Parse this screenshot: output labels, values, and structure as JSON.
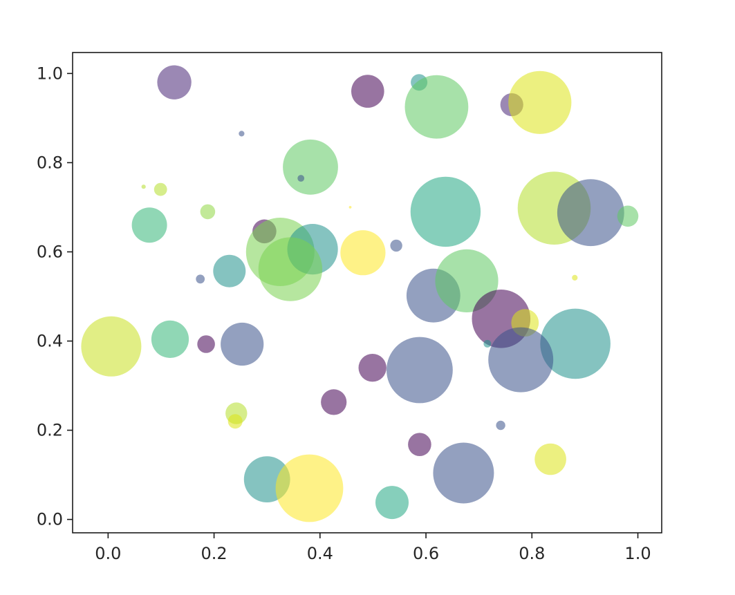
{
  "chart_data": {
    "type": "scatter",
    "title": "",
    "xlabel": "",
    "ylabel": "",
    "xlim": [
      -0.067,
      1.045
    ],
    "ylim": [
      -0.03,
      1.047
    ],
    "grid": false,
    "legend": "none",
    "alpha": 0.55,
    "colormap": "viridis",
    "xticks": [
      0.0,
      0.2,
      0.4,
      0.6,
      0.8,
      1.0
    ],
    "yticks": [
      0.0,
      0.2,
      0.4,
      0.6,
      0.8,
      1.0
    ],
    "xtick_labels": [
      "0.0",
      "0.2",
      "0.4",
      "0.6",
      "0.8",
      "1.0"
    ],
    "ytick_labels": [
      "0.0",
      "0.2",
      "0.4",
      "0.6",
      "0.8",
      "1.0"
    ],
    "points": [
      {
        "x": 0.125,
        "y": 0.98,
        "size": 326,
        "color": "#482677"
      },
      {
        "x": 0.49,
        "y": 0.96,
        "size": 303,
        "color": "#440154"
      },
      {
        "x": 0.587,
        "y": 0.98,
        "size": 77,
        "color": "#21918c"
      },
      {
        "x": 0.62,
        "y": 0.925,
        "size": 1122,
        "color": "#5ec962"
      },
      {
        "x": 0.762,
        "y": 0.93,
        "size": 146,
        "color": "#482677"
      },
      {
        "x": 0.815,
        "y": 0.935,
        "size": 1106,
        "color": "#dde318"
      },
      {
        "x": 0.252,
        "y": 0.865,
        "size": 9,
        "color": "#3b528b"
      },
      {
        "x": 0.382,
        "y": 0.79,
        "size": 849,
        "color": "#5ec962"
      },
      {
        "x": 0.364,
        "y": 0.765,
        "size": 13,
        "color": "#3b528b"
      },
      {
        "x": 0.067,
        "y": 0.746,
        "size": 5,
        "color": "#b5de2b"
      },
      {
        "x": 0.099,
        "y": 0.74,
        "size": 47,
        "color": "#b5de2b"
      },
      {
        "x": 0.188,
        "y": 0.69,
        "size": 62,
        "color": "#90d743"
      },
      {
        "x": 0.637,
        "y": 0.69,
        "size": 1367,
        "color": "#22a884"
      },
      {
        "x": 0.842,
        "y": 0.698,
        "size": 1487,
        "color": "#b5de2b"
      },
      {
        "x": 0.911,
        "y": 0.688,
        "size": 1250,
        "color": "#3b528b"
      },
      {
        "x": 0.981,
        "y": 0.68,
        "size": 125,
        "color": "#5ec962"
      },
      {
        "x": 0.078,
        "y": 0.66,
        "size": 346,
        "color": "#35b779"
      },
      {
        "x": 0.295,
        "y": 0.646,
        "size": 160,
        "color": "#440154"
      },
      {
        "x": 0.325,
        "y": 0.6,
        "size": 1306,
        "color": "#7ad151"
      },
      {
        "x": 0.386,
        "y": 0.606,
        "size": 712,
        "color": "#21918c"
      },
      {
        "x": 0.344,
        "y": 0.561,
        "size": 1138,
        "color": "#7ad151"
      },
      {
        "x": 0.457,
        "y": 0.7,
        "size": 2,
        "color": "#fde725"
      },
      {
        "x": 0.481,
        "y": 0.598,
        "size": 567,
        "color": "#fde725"
      },
      {
        "x": 0.544,
        "y": 0.614,
        "size": 40,
        "color": "#3b528b"
      },
      {
        "x": 0.174,
        "y": 0.539,
        "size": 22,
        "color": "#3b528b"
      },
      {
        "x": 0.229,
        "y": 0.557,
        "size": 295,
        "color": "#21918c"
      },
      {
        "x": 0.881,
        "y": 0.542,
        "size": 9,
        "color": "#dde318"
      },
      {
        "x": 0.614,
        "y": 0.502,
        "size": 807,
        "color": "#3b528b"
      },
      {
        "x": 0.677,
        "y": 0.535,
        "size": 1108,
        "color": "#5ec962"
      },
      {
        "x": 0.742,
        "y": 0.45,
        "size": 955,
        "color": "#440154"
      },
      {
        "x": 0.787,
        "y": 0.441,
        "size": 210,
        "color": "#dde318"
      },
      {
        "x": 0.006,
        "y": 0.388,
        "size": 1006,
        "color": "#c8e020"
      },
      {
        "x": 0.117,
        "y": 0.404,
        "size": 391,
        "color": "#35b779"
      },
      {
        "x": 0.185,
        "y": 0.393,
        "size": 87,
        "color": "#440154"
      },
      {
        "x": 0.253,
        "y": 0.393,
        "size": 514,
        "color": "#3b528b"
      },
      {
        "x": 0.716,
        "y": 0.394,
        "size": 16,
        "color": "#21918c"
      },
      {
        "x": 0.882,
        "y": 0.394,
        "size": 1374,
        "color": "#21918c"
      },
      {
        "x": 0.499,
        "y": 0.34,
        "size": 218,
        "color": "#440154"
      },
      {
        "x": 0.588,
        "y": 0.335,
        "size": 1223,
        "color": "#3b528b"
      },
      {
        "x": 0.779,
        "y": 0.358,
        "size": 1178,
        "color": "#3b528b"
      },
      {
        "x": 0.426,
        "y": 0.263,
        "size": 185,
        "color": "#440154"
      },
      {
        "x": 0.242,
        "y": 0.238,
        "size": 131,
        "color": "#b5de2b"
      },
      {
        "x": 0.24,
        "y": 0.22,
        "size": 59,
        "color": "#dde318"
      },
      {
        "x": 0.741,
        "y": 0.211,
        "size": 24,
        "color": "#3b528b"
      },
      {
        "x": 0.588,
        "y": 0.168,
        "size": 150,
        "color": "#440154"
      },
      {
        "x": 0.835,
        "y": 0.135,
        "size": 276,
        "color": "#dde318"
      },
      {
        "x": 0.3,
        "y": 0.09,
        "size": 596,
        "color": "#21918c"
      },
      {
        "x": 0.38,
        "y": 0.07,
        "size": 1276,
        "color": "#fde725"
      },
      {
        "x": 0.536,
        "y": 0.038,
        "size": 308,
        "color": "#22a884"
      },
      {
        "x": 0.671,
        "y": 0.104,
        "size": 1033,
        "color": "#3b528b"
      }
    ]
  }
}
